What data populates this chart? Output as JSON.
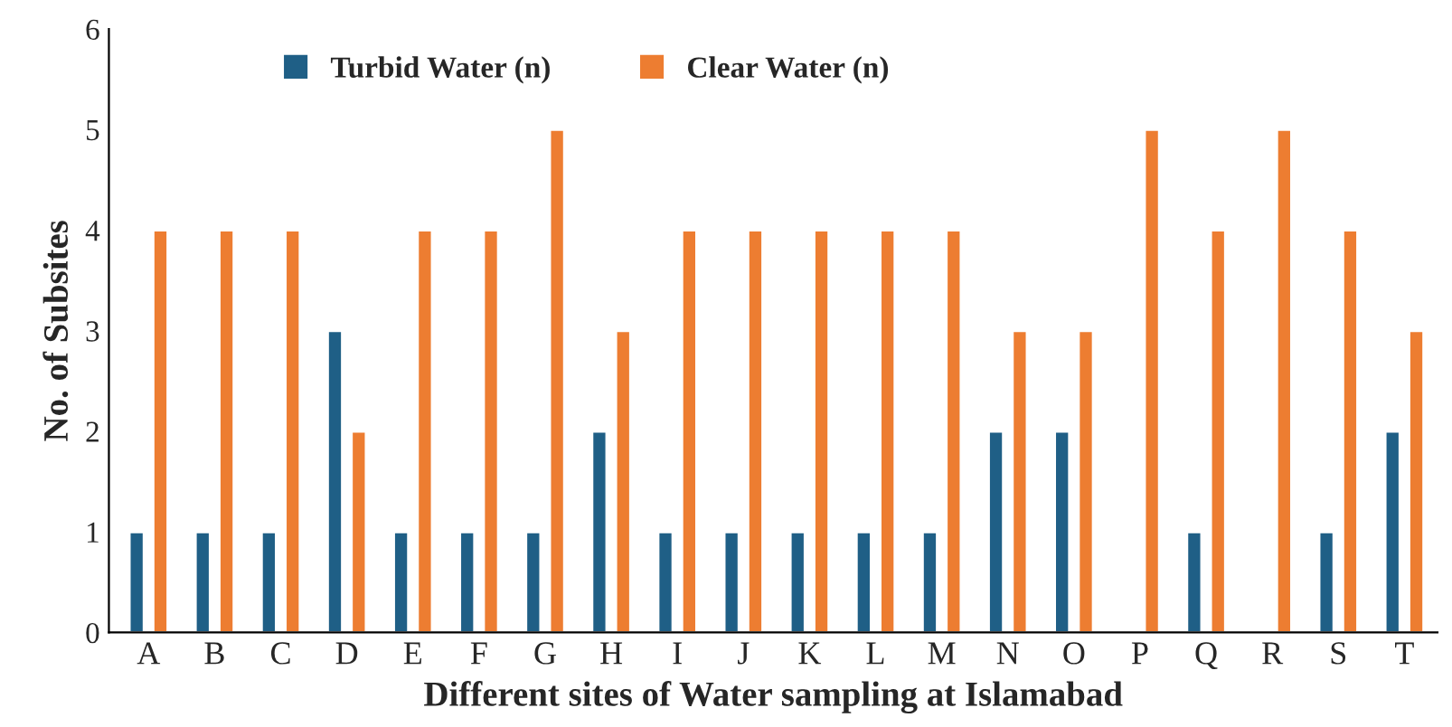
{
  "chart_data": {
    "type": "bar",
    "xlabel": "Different sites of Water sampling at Islamabad",
    "ylabel": "No. of Subsites",
    "categories": [
      "A",
      "B",
      "C",
      "D",
      "E",
      "F",
      "G",
      "H",
      "I",
      "J",
      "K",
      "L",
      "M",
      "N",
      "O",
      "P",
      "Q",
      "R",
      "S",
      "T"
    ],
    "series": [
      {
        "name": "Turbid Water (n)",
        "color": "#1f5f86",
        "values": [
          1,
          1,
          1,
          3,
          1,
          1,
          1,
          2,
          1,
          1,
          1,
          1,
          1,
          2,
          2,
          null,
          1,
          null,
          1,
          2
        ]
      },
      {
        "name": "Clear Water (n)",
        "color": "#ed7d31",
        "values": [
          4,
          4,
          4,
          2,
          4,
          4,
          5,
          3,
          4,
          4,
          4,
          4,
          4,
          3,
          3,
          5,
          4,
          5,
          4,
          3
        ]
      }
    ],
    "ylim": [
      0,
      6
    ],
    "yticks": [
      0,
      1,
      2,
      3,
      4,
      5,
      6
    ],
    "grid": false,
    "legend": "top"
  }
}
